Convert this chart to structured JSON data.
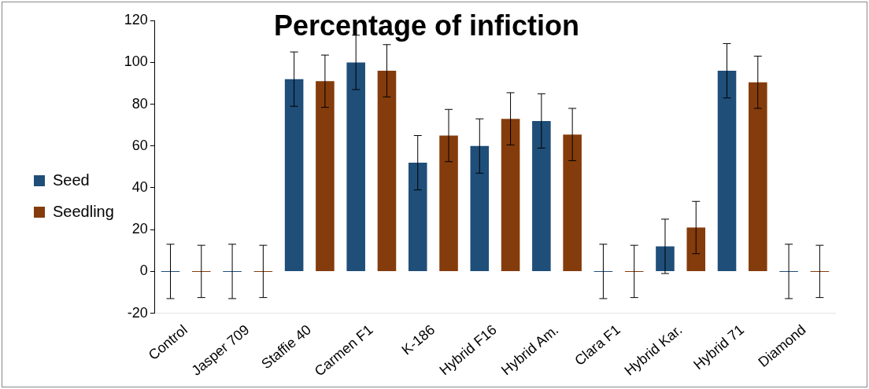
{
  "chart_data": {
    "type": "bar",
    "title": "Percentage of infiction",
    "categories": [
      "Control",
      "Jasper 709",
      "Staffie 40",
      "Carmen F1",
      "K-186",
      "Hybrid F16",
      "Hybrid Am.",
      "Clara F1",
      "Hybrid Kar.",
      "Hybrid 71",
      "Diamond"
    ],
    "series": [
      {
        "name": "Seed",
        "color": "#1f4e79",
        "values": [
          0,
          0,
          92,
          100,
          52,
          60,
          72,
          0,
          12,
          96,
          0
        ],
        "errors": [
          13,
          13,
          13,
          13,
          13,
          13,
          13,
          13,
          13,
          13,
          13
        ]
      },
      {
        "name": "Seedling",
        "color": "#843c0c",
        "values": [
          0,
          0,
          91,
          96,
          65,
          73,
          65.5,
          0,
          21,
          90.5,
          0
        ],
        "errors": [
          12.5,
          12.5,
          12.5,
          12.5,
          12.5,
          12.5,
          12.5,
          12.5,
          12.5,
          12.5,
          12.5
        ]
      }
    ],
    "ylim": [
      -20,
      120
    ],
    "yticks": [
      -20,
      0,
      20,
      40,
      60,
      80,
      100,
      120
    ],
    "grid": false,
    "legend": "left"
  }
}
